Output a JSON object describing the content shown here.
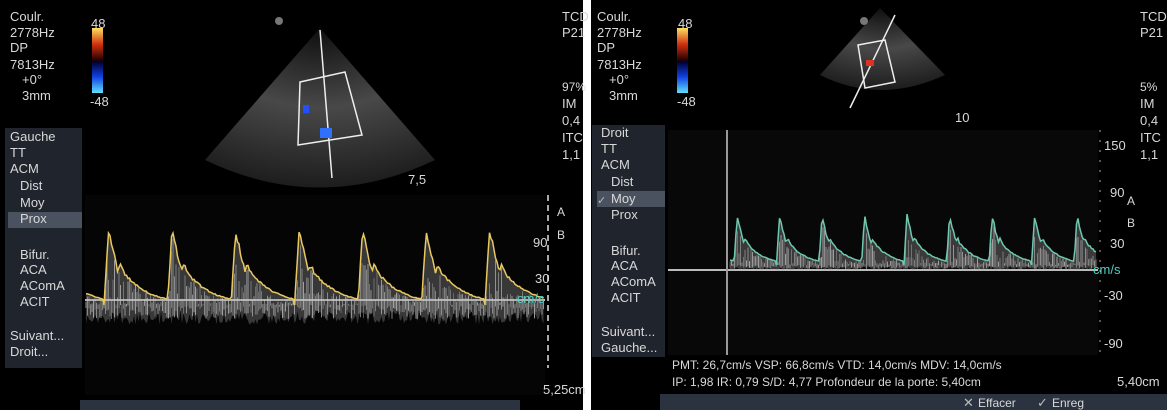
{
  "left": {
    "info": [
      "Coulr.",
      "2778Hz",
      "DP",
      "7813Hz",
      "+0°",
      "3mm"
    ],
    "color_scale": [
      "48",
      "-48"
    ],
    "menu": [
      "Gauche",
      "TT",
      "ACM",
      "Dist",
      "Moy",
      "Prox",
      "Bifur.",
      "ACA",
      "AComA",
      "ACIT",
      "Suivant...",
      "Droit..."
    ],
    "status": [
      "TCD",
      "P21",
      "97%",
      "IM",
      "0,4",
      "ITC",
      "1,1"
    ],
    "depth": "7,5",
    "scale": [
      "90",
      "30"
    ],
    "unit": "cm/s",
    "markers": [
      "A",
      "B"
    ],
    "gate_depth": "5,25cm"
  },
  "right": {
    "info": [
      "Coulr.",
      "2778Hz",
      "DP",
      "7813Hz",
      "+0°",
      "3mm"
    ],
    "color_scale": [
      "48",
      "-48"
    ],
    "menu": [
      "Droit",
      "TT",
      "ACM",
      "Dist",
      "Moy",
      "Prox",
      "Bifur.",
      "ACA",
      "AComA",
      "ACIT",
      "Suivant...",
      "Gauche..."
    ],
    "status": [
      "TCD",
      "P21",
      "5%",
      "IM",
      "0,4",
      "ITC",
      "1,1"
    ],
    "depth": "10",
    "scale": [
      "150",
      "90",
      "30",
      "-30",
      "-90"
    ],
    "unit": "cm/s",
    "markers": [
      "A",
      "B"
    ],
    "measurements": [
      "PMT: 26,7cm/s VSP: 66,8cm/s VTD: 14,0cm/s MDV: 14,0cm/s",
      "IP: 1,98 IR: 0,79 S/D: 4,77 Profondeur de la porte: 5,40cm"
    ],
    "gate_depth": "5,40cm",
    "buttons": [
      "Effacer",
      "Enreg"
    ]
  }
}
